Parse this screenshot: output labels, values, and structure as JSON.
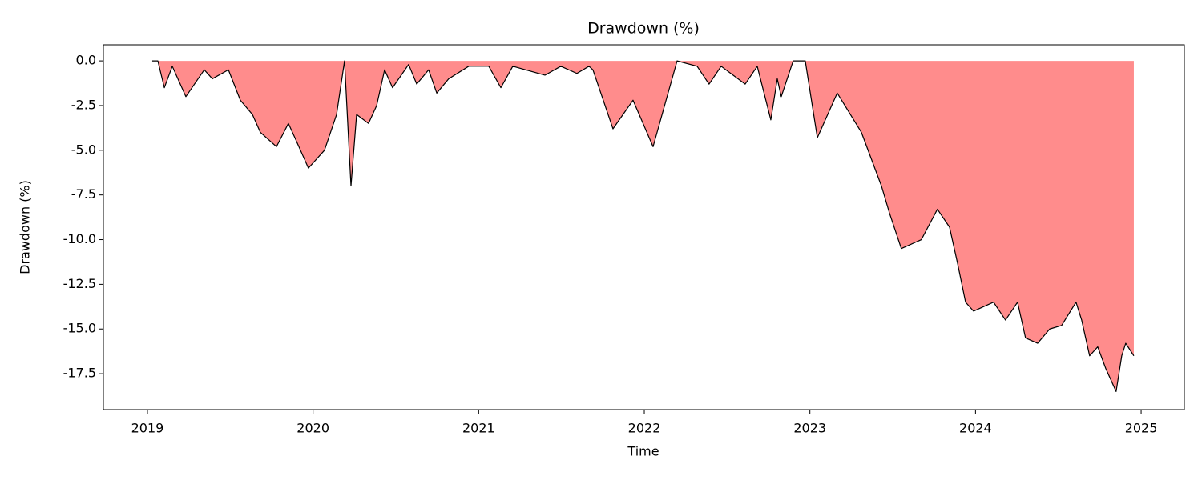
{
  "chart_data": {
    "type": "area",
    "title": "Drawdown (%)",
    "xlabel": "Time",
    "ylabel": "Drawdown (%)",
    "x": [
      2019.029,
      2019.063,
      2019.102,
      2019.15,
      2019.232,
      2019.343,
      2019.392,
      2019.489,
      2019.561,
      2019.634,
      2019.682,
      2019.779,
      2019.851,
      2019.9,
      2019.972,
      2020.069,
      2020.142,
      2020.19,
      2020.229,
      2020.263,
      2020.335,
      2020.384,
      2020.432,
      2020.48,
      2020.577,
      2020.626,
      2020.698,
      2020.747,
      2020.819,
      2020.94,
      2021.061,
      2021.134,
      2021.206,
      2021.4,
      2021.496,
      2021.593,
      2021.666,
      2021.69,
      2021.811,
      2021.932,
      2022.053,
      2022.198,
      2022.319,
      2022.391,
      2022.464,
      2022.609,
      2022.682,
      2022.764,
      2022.803,
      2022.827,
      2022.899,
      2022.972,
      2023.045,
      2023.165,
      2023.311,
      2023.432,
      2023.48,
      2023.552,
      2023.673,
      2023.77,
      2023.843,
      2023.891,
      2023.94,
      2023.988,
      2024.109,
      2024.181,
      2024.254,
      2024.302,
      2024.375,
      2024.448,
      2024.52,
      2024.607,
      2024.641,
      2024.689,
      2024.738,
      2024.786,
      2024.849,
      2024.883,
      2024.907,
      2024.956
    ],
    "values": [
      0,
      0,
      -1.5,
      -0.3,
      -2.0,
      -0.5,
      -1.0,
      -0.5,
      -2.2,
      -3.0,
      -4.0,
      -4.8,
      -3.5,
      -4.5,
      -6.0,
      -5.0,
      -3.0,
      0,
      -7.0,
      -3.0,
      -3.5,
      -2.5,
      -0.5,
      -1.5,
      -0.2,
      -1.3,
      -0.5,
      -1.8,
      -1.0,
      -0.3,
      -0.3,
      -1.5,
      -0.3,
      -0.8,
      -0.3,
      -0.7,
      -0.3,
      -0.5,
      -3.8,
      -2.2,
      -4.8,
      0,
      -0.3,
      -1.3,
      -0.3,
      -1.3,
      -0.3,
      -3.3,
      -1.0,
      -2.0,
      0,
      0,
      -4.3,
      -1.8,
      -4.0,
      -7.0,
      -8.5,
      -10.5,
      -10.0,
      -8.3,
      -9.3,
      -11.3,
      -13.5,
      -14.0,
      -13.5,
      -14.5,
      -13.5,
      -15.5,
      -15.8,
      -15.0,
      -14.8,
      -13.5,
      -14.5,
      -16.5,
      -16.0,
      -17.2,
      -18.5,
      -16.5,
      -15.8,
      -16.5
    ],
    "fill_color": "#ff8c8c",
    "line_color": "#000000",
    "xlim": [
      2018.734,
      2025.261
    ],
    "xticks": [
      2019,
      2020,
      2021,
      2022,
      2023,
      2024,
      2025
    ],
    "ylim": [
      -19.51,
      0.9
    ],
    "yticks": [
      {
        "value": 0,
        "label": "0.0"
      },
      -2.5,
      {
        "value": -5,
        "label": "-5.0"
      },
      -7.5,
      {
        "value": -10,
        "label": "-10.0"
      },
      -12.5,
      {
        "value": -15,
        "label": "-15.0"
      },
      -17.5
    ]
  }
}
